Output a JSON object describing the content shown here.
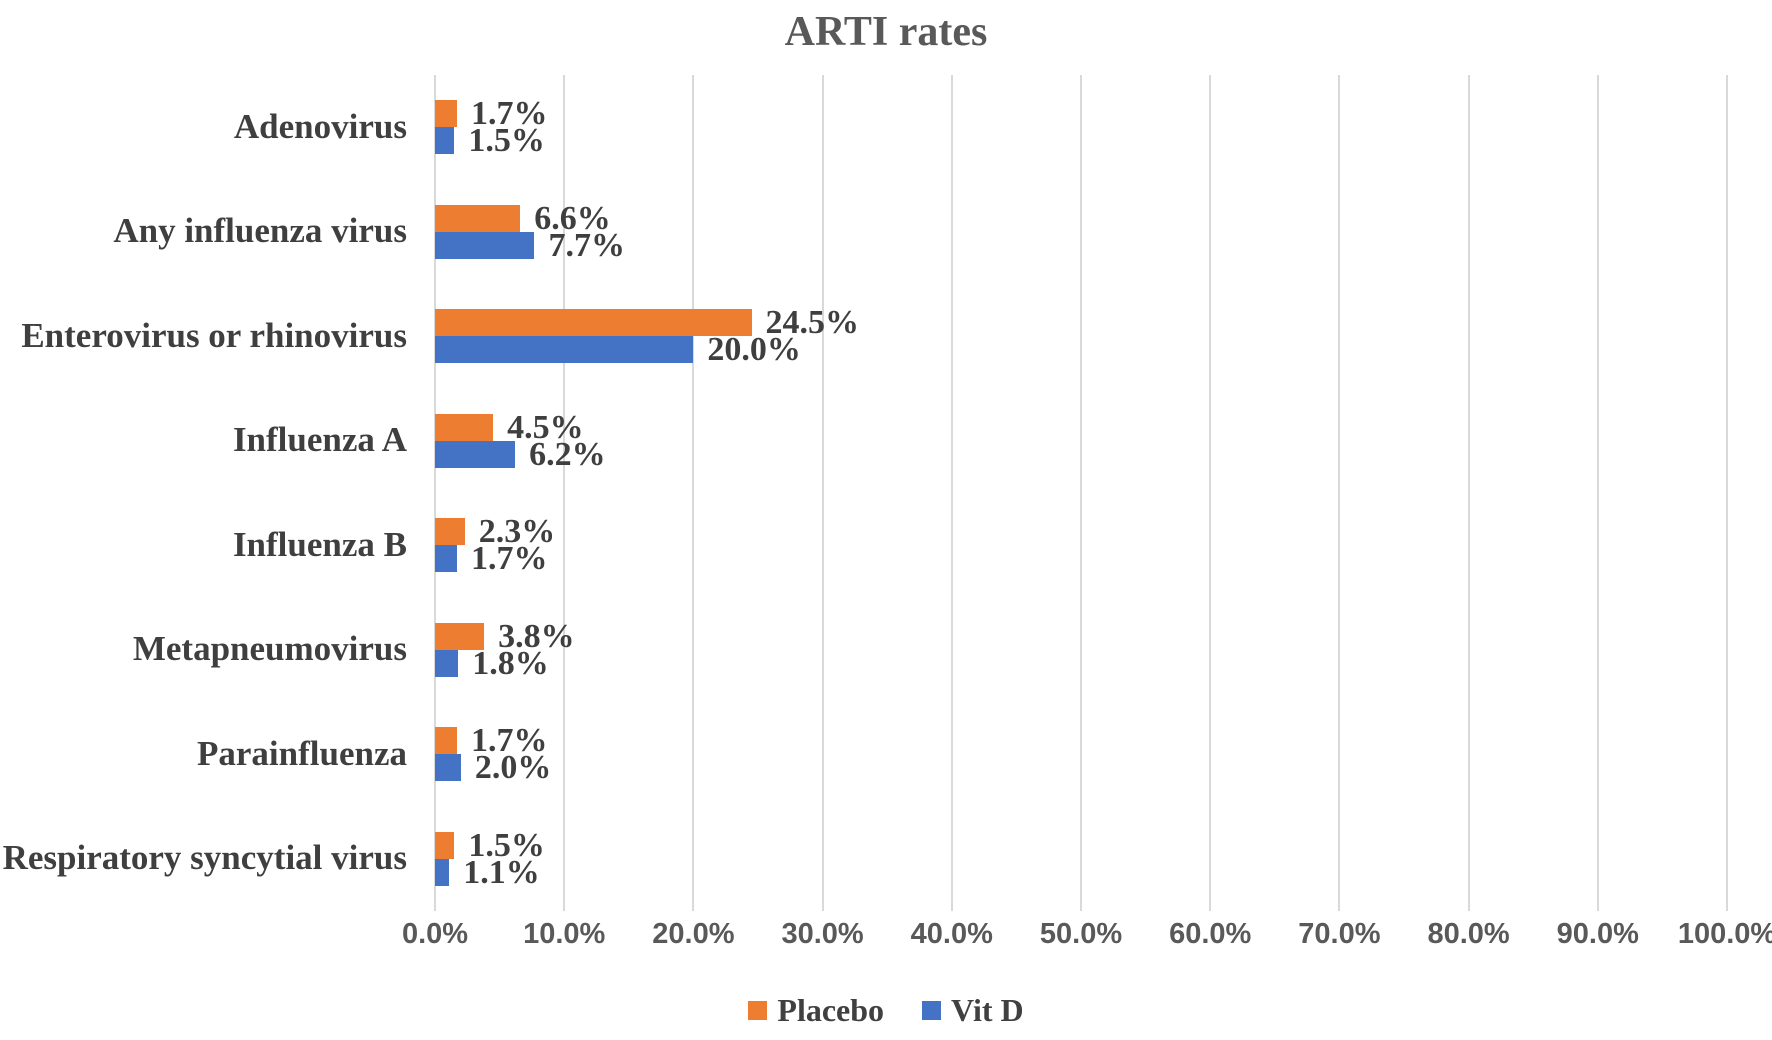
{
  "title": "ARTI rates",
  "colors": {
    "placebo": "#ED7D31",
    "vit_d": "#4472C4",
    "gridline": "#D9D9D9",
    "axis_text": "#595959",
    "label_text": "#3F3F3F"
  },
  "x_axis": {
    "tick_labels": [
      "0.0%",
      "10.0%",
      "20.0%",
      "30.0%",
      "40.0%",
      "50.0%",
      "60.0%",
      "70.0%",
      "80.0%",
      "90.0%",
      "100.0%"
    ]
  },
  "legend": {
    "items": [
      {
        "label": "Placebo",
        "color": "#ED7D31"
      },
      {
        "label": "Vit D",
        "color": "#4472C4"
      }
    ]
  },
  "chart_data": {
    "type": "bar",
    "orientation": "horizontal",
    "title": "ARTI rates",
    "categories": [
      "Adenovirus",
      "Any influenza virus",
      "Enterovirus or rhinovirus",
      "Influenza A",
      "Influenza B",
      "Metapneumovirus",
      "Parainfluenza",
      "Respiratory syncytial virus"
    ],
    "series": [
      {
        "name": "Placebo",
        "color": "#ED7D31",
        "values": [
          1.7,
          6.6,
          24.5,
          4.5,
          2.3,
          3.8,
          1.7,
          1.5
        ],
        "labels": [
          "1.7%",
          "6.6%",
          "24.5%",
          "4.5%",
          "2.3%",
          "3.8%",
          "1.7%",
          "1.5%"
        ]
      },
      {
        "name": "Vit D",
        "color": "#4472C4",
        "values": [
          1.5,
          7.7,
          20.0,
          6.2,
          1.7,
          1.8,
          2.0,
          1.1
        ],
        "labels": [
          "1.5%",
          "7.7%",
          "20.0%",
          "6.2%",
          "1.7%",
          "1.8%",
          "2.0%",
          "1.1%"
        ]
      }
    ],
    "xlim": [
      0,
      100
    ],
    "x_tick_step": 10,
    "x_tick_format": "percent_one_decimal",
    "grid": true,
    "gridlines": "vertical",
    "data_labels": true,
    "legend_position": "bottom"
  }
}
